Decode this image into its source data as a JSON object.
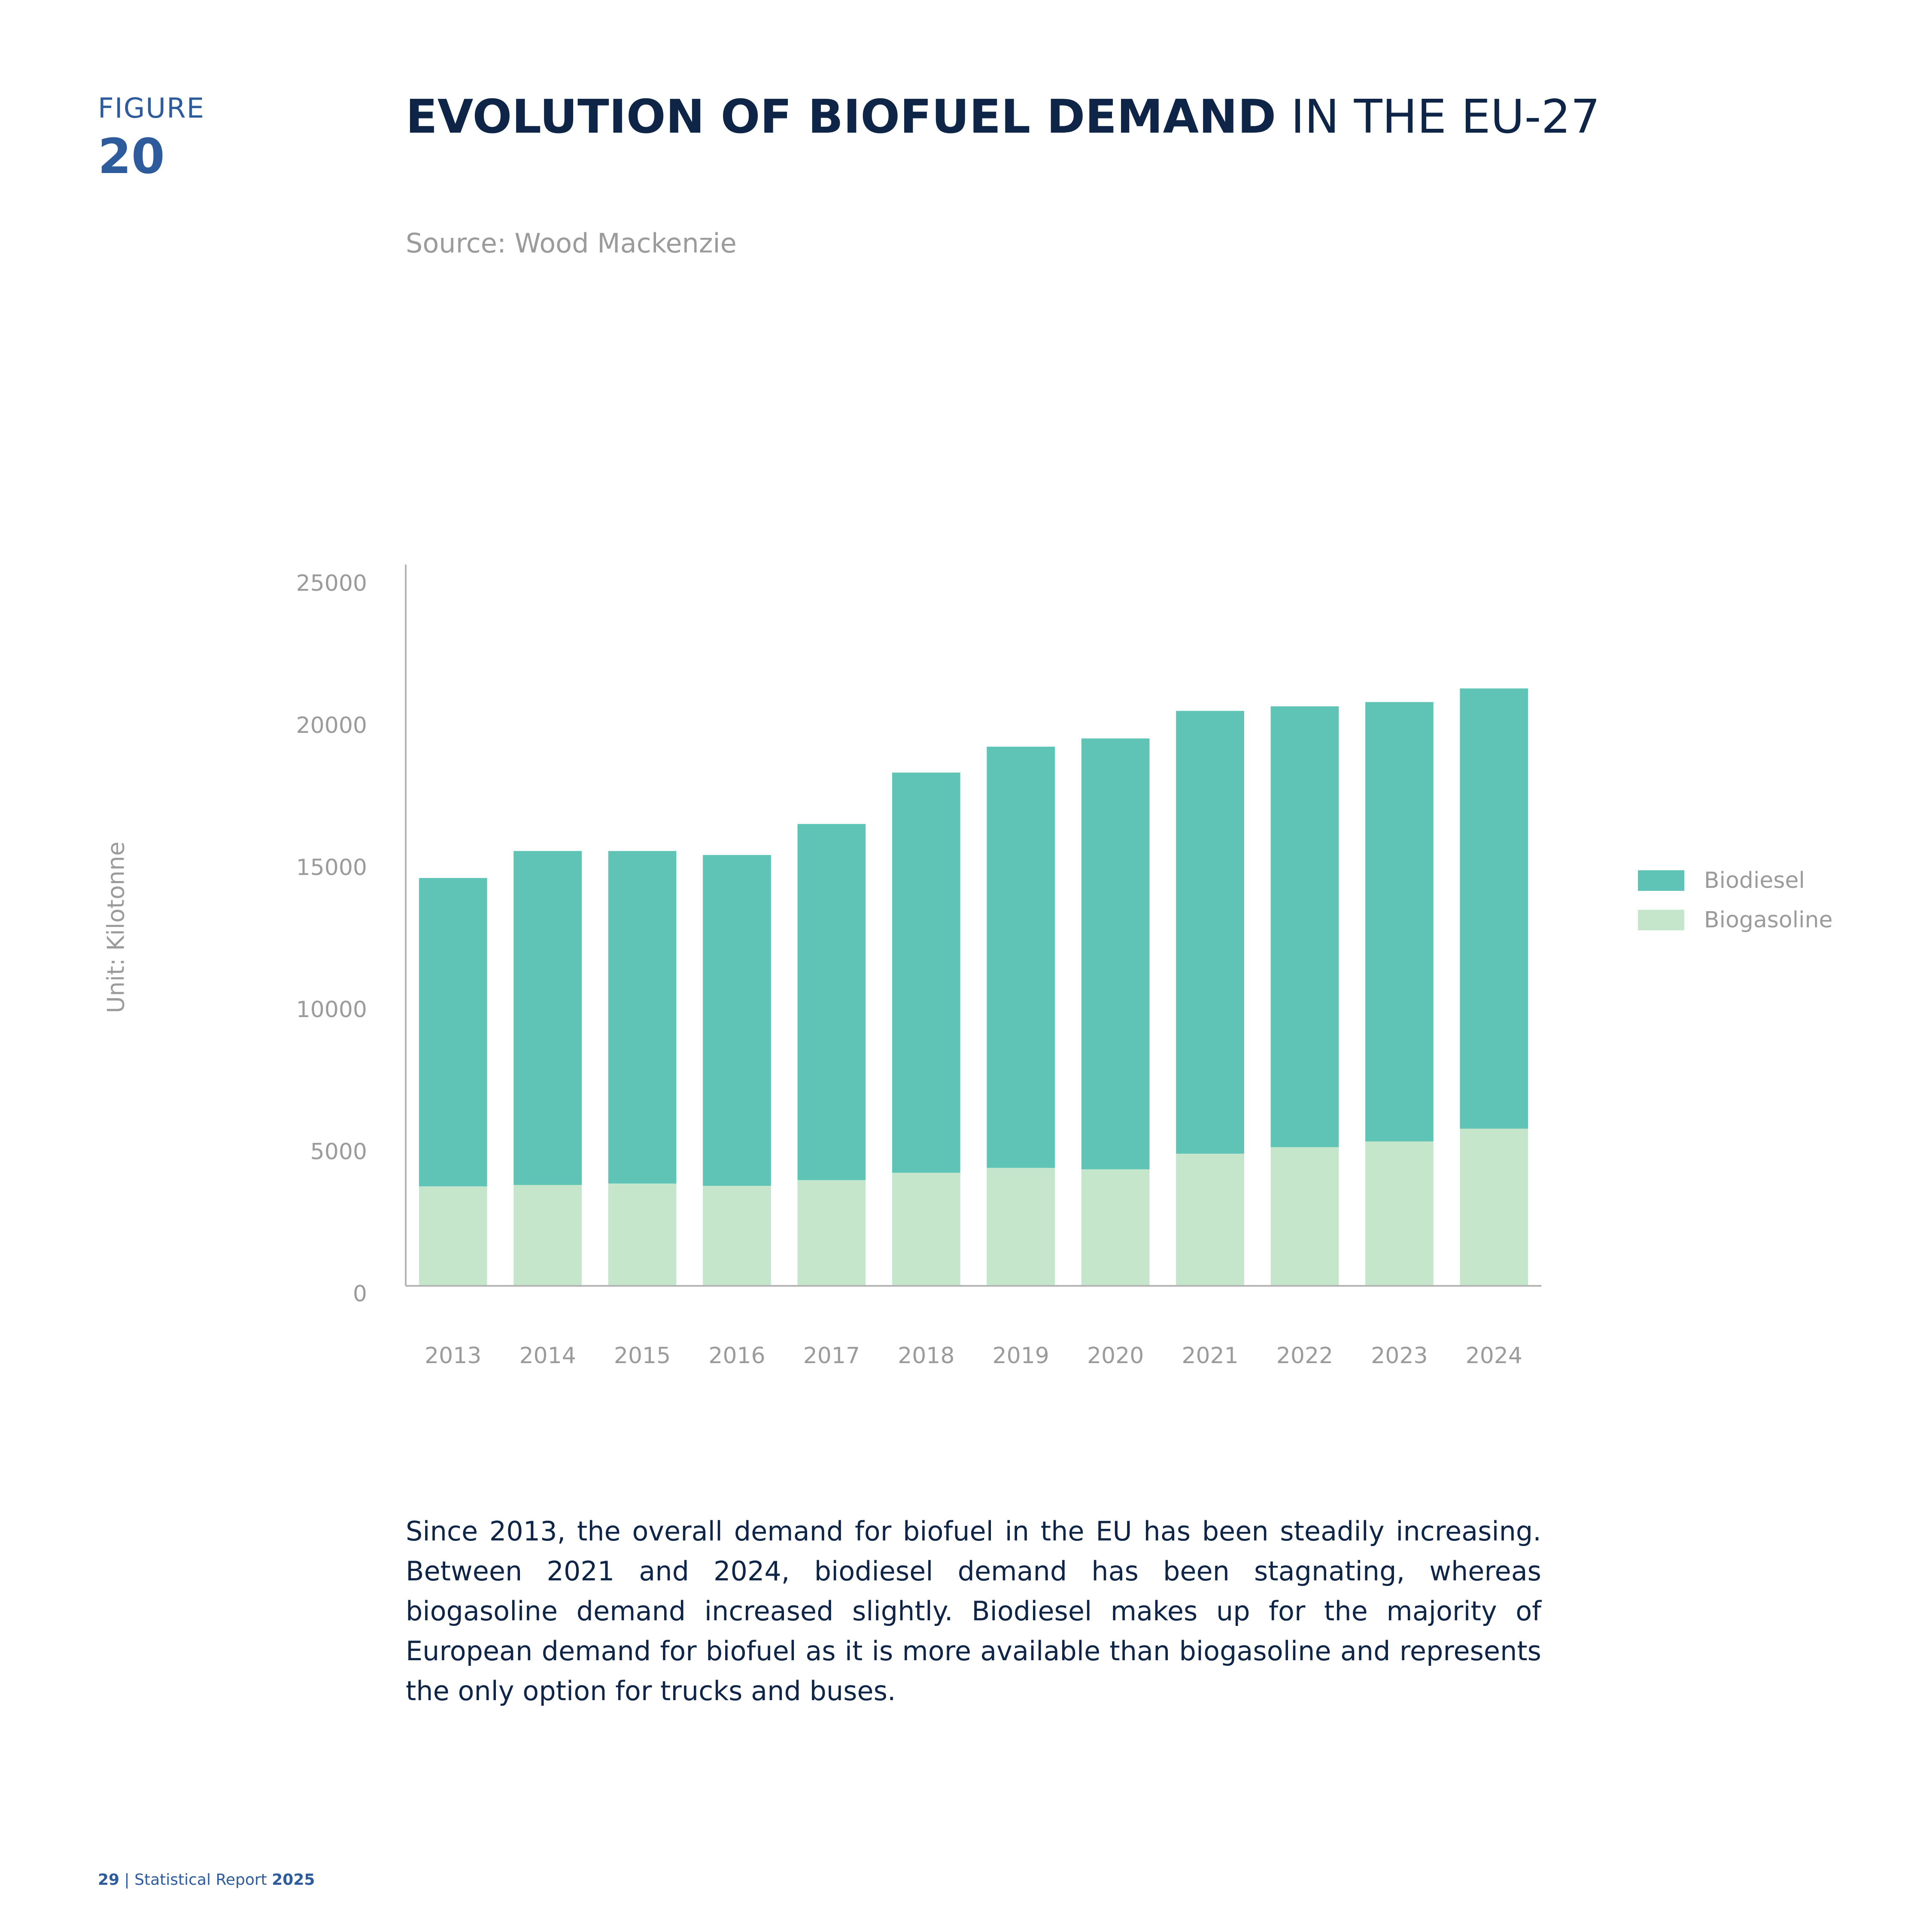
{
  "figure": {
    "label": "FIGURE",
    "number": "20"
  },
  "title": {
    "bold": "EVOLUTION OF BIOFUEL DEMAND",
    "rest": " IN THE EU-27"
  },
  "source": "Source: Wood Mackenzie",
  "unit_label": "Unit: Kilotonne",
  "colors": {
    "biodiesel": "#5fc4b5",
    "biogasoline": "#c6e6cc",
    "title": "#0e2547",
    "accent": "#2e5b9c",
    "muted": "#9b9b9b"
  },
  "chart_data": {
    "type": "bar",
    "stacked": true,
    "categories": [
      "2013",
      "2014",
      "2015",
      "2016",
      "2017",
      "2018",
      "2019",
      "2020",
      "2021",
      "2022",
      "2023",
      "2024"
    ],
    "series": [
      {
        "name": "Biogasoline",
        "color": "#c6e6cc",
        "values": [
          3500,
          3550,
          3600,
          3520,
          3720,
          3980,
          4150,
          4100,
          4650,
          4880,
          5080,
          5530
        ]
      },
      {
        "name": "Biodiesel",
        "color": "#5fc4b5",
        "values": [
          10850,
          11750,
          11700,
          11640,
          12530,
          14080,
          14820,
          15160,
          15580,
          15510,
          15460,
          15490
        ]
      }
    ],
    "ylim": [
      0,
      25000
    ],
    "yticks": [
      "0",
      "5000",
      "10000",
      "15000",
      "20000",
      "25000"
    ],
    "ylabel": "Unit: Kilotonne",
    "legend": [
      "Biodiesel",
      "Biogasoline"
    ],
    "legend_position": "right",
    "grid": false
  },
  "body_text": "Since 2013, the overall demand for biofuel in the EU has been steadily increasing. Between 2021 and 2024, biodiesel demand has been stagnating, whereas biogasoline demand increased slightly. Biodiesel makes up for the majority of European demand for biofuel as it is more available than biogasoline and represents the only option for trucks and buses.",
  "footer": {
    "page": "29",
    "separator": " | ",
    "report": "Statistical Report ",
    "year": "2025"
  }
}
